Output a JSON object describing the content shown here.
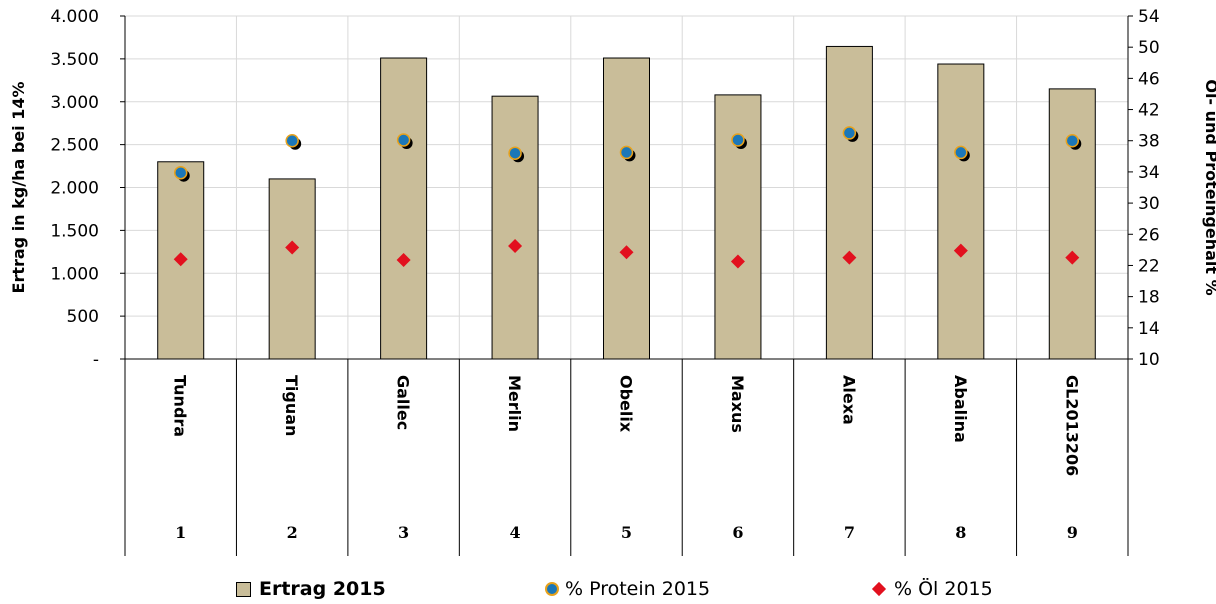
{
  "chart_data": {
    "type": "bar",
    "categories": [
      "Tundra",
      "Tiguan",
      "Gallec",
      "Merlin",
      "Obelix",
      "Maxus",
      "Alexa",
      "Abalina",
      "GL2013206"
    ],
    "category_numbers": [
      "1",
      "2",
      "3",
      "4",
      "5",
      "6",
      "7",
      "8",
      "9"
    ],
    "ylabel": "Ertrag in kg/ha bei 14%",
    "y2label": "Öl- und Proteingehalt %",
    "ylim": [
      0,
      4000
    ],
    "y2lim": [
      10,
      54
    ],
    "y_ticks": [
      "4.000",
      "3.500",
      "3.000",
      "2.500",
      "2.000",
      "1.500",
      "1.000",
      "500",
      "-"
    ],
    "y2_ticks": [
      "54",
      "50",
      "46",
      "42",
      "38",
      "34",
      "30",
      "26",
      "22",
      "18",
      "14",
      "10"
    ],
    "grid": true,
    "legend_position": "bottom",
    "series": [
      {
        "name": "Ertrag 2015",
        "type": "bar",
        "axis": "left",
        "color": "#c9bd99",
        "values": [
          2300,
          2100,
          3510,
          3065,
          3510,
          3080,
          3645,
          3440,
          3150
        ]
      },
      {
        "name": "% Protein 2015",
        "type": "scatter",
        "axis": "right",
        "marker": "circle",
        "color": "#1b77b8",
        "edge_color": "#e8a21c",
        "values": [
          33.9,
          38.0,
          38.1,
          36.4,
          36.5,
          38.1,
          39.0,
          36.5,
          38.0
        ]
      },
      {
        "name": "% Öl 2015",
        "type": "scatter",
        "axis": "right",
        "marker": "diamond",
        "color": "#e2101e",
        "values": [
          22.8,
          24.3,
          22.7,
          24.5,
          23.7,
          22.5,
          23.0,
          23.9,
          23.0
        ]
      }
    ]
  }
}
